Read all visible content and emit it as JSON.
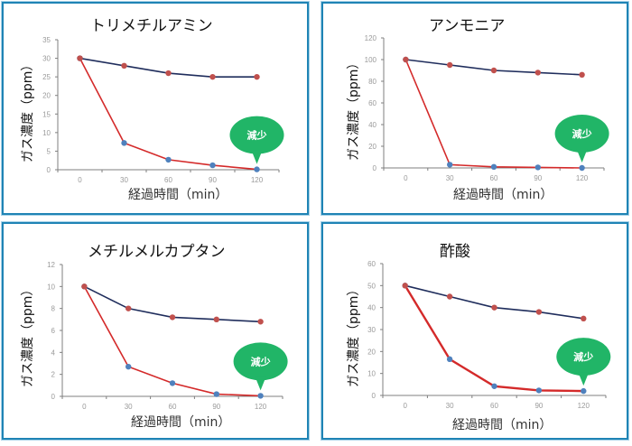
{
  "colors": {
    "panel_border": "#1f84b5",
    "untreated_line": "#1f2d5c",
    "untreated_marker": "#c0504d",
    "treated_line": "#d42a2a",
    "treated_marker": "#4f81bd",
    "bubble": "#21b567",
    "axis": "#7f7f7f"
  },
  "common": {
    "ylabel": "ガス濃度（ppm）",
    "xlabel": "経過時間（min）",
    "bubble_label": "減少"
  },
  "chart_data": [
    {
      "type": "line",
      "title": "トリメチルアミン",
      "xlabel": "経過時間（min）",
      "ylabel": "ガス濃度（ppm）",
      "categories": [
        "0",
        "30",
        "60",
        "90",
        "120"
      ],
      "yticks": [
        0,
        5,
        10,
        15,
        20,
        25,
        30,
        35
      ],
      "ylim": [
        0,
        35
      ],
      "grid": false,
      "legend": "none",
      "annotation": "減少",
      "series": [
        {
          "name": "upper (navy line, red markers)",
          "values": [
            30,
            28,
            26,
            25,
            25
          ]
        },
        {
          "name": "lower (red line, blue markers)",
          "values": [
            30,
            7.2,
            2.7,
            1.2,
            0.1
          ]
        }
      ]
    },
    {
      "type": "line",
      "title": "アンモニア",
      "xlabel": "経過時間（min）",
      "ylabel": "ガス濃度（ppm）",
      "categories": [
        "0",
        "30",
        "60",
        "90",
        "120"
      ],
      "yticks": [
        0,
        20,
        40,
        60,
        80,
        100,
        120
      ],
      "ylim": [
        0,
        120
      ],
      "grid": false,
      "legend": "none",
      "annotation": "減少",
      "series": [
        {
          "name": "upper (navy line, red markers)",
          "values": [
            100,
            95,
            90,
            88,
            86
          ]
        },
        {
          "name": "lower (red line, blue markers)",
          "values": [
            100,
            3,
            1,
            0.5,
            0
          ]
        }
      ]
    },
    {
      "type": "line",
      "title": "メチルメルカプタン",
      "xlabel": "経過時間（min）",
      "ylabel": "ガス濃度（ppm）",
      "categories": [
        "0",
        "30",
        "60",
        "90",
        "120"
      ],
      "yticks": [
        0,
        2,
        4,
        6,
        8,
        10,
        12
      ],
      "ylim": [
        0,
        12
      ],
      "grid": false,
      "legend": "none",
      "annotation": "減少",
      "series": [
        {
          "name": "upper (navy line, red markers)",
          "values": [
            10,
            8,
            7.2,
            7,
            6.8
          ]
        },
        {
          "name": "lower (red line, blue markers)",
          "values": [
            10,
            2.7,
            1.2,
            0.2,
            0.05
          ]
        }
      ]
    },
    {
      "type": "line",
      "title": "酢酸",
      "xlabel": "経過時間（min）",
      "ylabel": "ガス濃度（ppm）",
      "categories": [
        "0",
        "30",
        "60",
        "90",
        "120"
      ],
      "yticks": [
        0,
        10,
        20,
        30,
        40,
        50,
        60
      ],
      "ylim": [
        0,
        60
      ],
      "grid": false,
      "legend": "none",
      "annotation": "減少",
      "series": [
        {
          "name": "upper (navy line, red markers)",
          "values": [
            50,
            45,
            40,
            38,
            35
          ]
        },
        {
          "name": "lower (red line, blue markers)",
          "values": [
            50,
            16.5,
            4.2,
            2.3,
            2
          ]
        }
      ]
    }
  ]
}
